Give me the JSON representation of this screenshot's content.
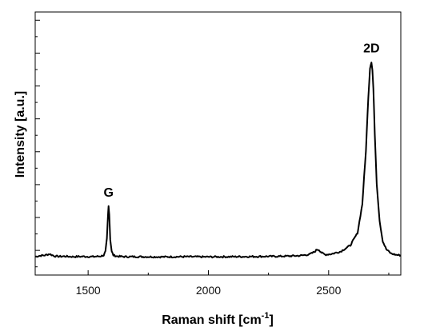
{
  "chart_data": {
    "type": "line",
    "xlabel_main": "Raman shift [cm",
    "xlabel_sup": "-1",
    "xlabel_end": "]",
    "ylabel": "Intensity [a.u.]",
    "xlim": [
      1280,
      2800
    ],
    "ylim": [
      0,
      1
    ],
    "x_ticks": [
      1500,
      2000,
      2500
    ],
    "x_tick_labels": [
      "1500",
      "2000",
      "2500"
    ],
    "y_minor_ticks": 16,
    "grid": false,
    "series": [
      {
        "x": [
          1280,
          1300,
          1320,
          1340,
          1360,
          1380,
          1400,
          1440,
          1480,
          1520,
          1550,
          1565,
          1572,
          1578,
          1582,
          1585,
          1588,
          1592,
          1598,
          1605,
          1620,
          1650,
          1700,
          1800,
          1900,
          2000,
          2100,
          2200,
          2300,
          2380,
          2420,
          2440,
          2452,
          2460,
          2470,
          2485,
          2510,
          2550,
          2590,
          2620,
          2640,
          2655,
          2665,
          2672,
          2678,
          2682,
          2686,
          2692,
          2700,
          2712,
          2725,
          2740,
          2760,
          2780,
          2800
        ],
        "y": [
          0.085,
          0.09,
          0.092,
          0.098,
          0.088,
          0.086,
          0.087,
          0.085,
          0.086,
          0.085,
          0.087,
          0.092,
          0.11,
          0.17,
          0.27,
          0.33,
          0.29,
          0.17,
          0.11,
          0.092,
          0.087,
          0.085,
          0.085,
          0.084,
          0.085,
          0.084,
          0.085,
          0.086,
          0.087,
          0.09,
          0.096,
          0.108,
          0.12,
          0.118,
          0.105,
          0.095,
          0.098,
          0.11,
          0.14,
          0.2,
          0.34,
          0.6,
          0.86,
          1.0,
          1.03,
          0.99,
          0.9,
          0.68,
          0.44,
          0.26,
          0.16,
          0.12,
          0.1,
          0.094,
          0.092
        ]
      }
    ],
    "annotations": [
      {
        "text": "G",
        "x": 1585,
        "y": 0.33
      },
      {
        "text": "2D",
        "x": 2678,
        "y": 1.03
      }
    ]
  }
}
